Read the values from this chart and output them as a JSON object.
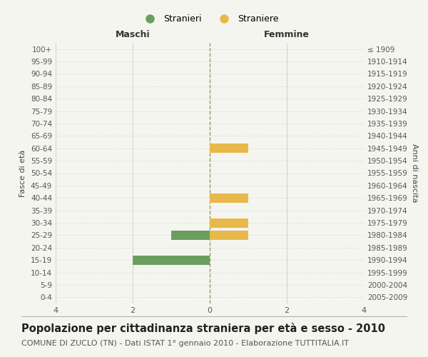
{
  "age_groups": [
    "0-4",
    "5-9",
    "10-14",
    "15-19",
    "20-24",
    "25-29",
    "30-34",
    "35-39",
    "40-44",
    "45-49",
    "50-54",
    "55-59",
    "60-64",
    "65-69",
    "70-74",
    "75-79",
    "80-84",
    "85-89",
    "90-94",
    "95-99",
    "100+"
  ],
  "birth_years": [
    "2005-2009",
    "2000-2004",
    "1995-1999",
    "1990-1994",
    "1985-1989",
    "1980-1984",
    "1975-1979",
    "1970-1974",
    "1965-1969",
    "1960-1964",
    "1955-1959",
    "1950-1954",
    "1945-1949",
    "1940-1944",
    "1935-1939",
    "1930-1934",
    "1925-1929",
    "1920-1924",
    "1915-1919",
    "1910-1914",
    "≤ 1909"
  ],
  "stranieri_males": [
    0,
    0,
    0,
    -2,
    0,
    -1,
    0,
    0,
    0,
    0,
    0,
    0,
    0,
    0,
    0,
    0,
    0,
    0,
    0,
    0,
    0
  ],
  "straniere_females": [
    0,
    0,
    0,
    0,
    0,
    1,
    1,
    0,
    1,
    0,
    0,
    0,
    1,
    0,
    0,
    0,
    0,
    0,
    0,
    0,
    0
  ],
  "male_color": "#6b9e5e",
  "female_color": "#e8b84b",
  "background_color": "#f5f5f0",
  "grid_color": "#cccccc",
  "center_line_color": "#999966",
  "xlim": [
    -4,
    4
  ],
  "xticks": [
    -4,
    -2,
    0,
    2,
    4
  ],
  "xlabel_maschi": "Maschi",
  "xlabel_femmine": "Femmine",
  "ylabel_left": "Fasce di età",
  "ylabel_right": "Anni di nascita",
  "legend_males": "Stranieri",
  "legend_females": "Straniere",
  "title": "Popolazione per cittadinanza straniera per età e sesso - 2010",
  "subtitle": "COMUNE DI ZUCLO (TN) - Dati ISTAT 1° gennaio 2010 - Elaborazione TUTTITALIA.IT",
  "title_fontsize": 10.5,
  "subtitle_fontsize": 8,
  "bar_height": 0.75
}
